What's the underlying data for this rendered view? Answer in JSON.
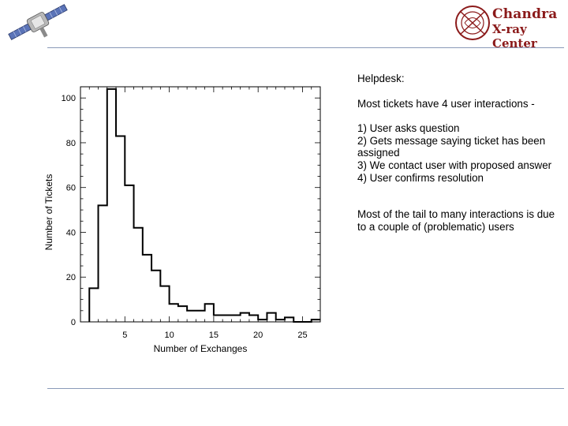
{
  "header": {
    "logo_line1": "Chandra",
    "logo_line2": "X-ray Center",
    "satellite_icon": "satellite-icon",
    "logo_icon": "chandra-logo-icon"
  },
  "notes": {
    "heading": "Helpdesk:",
    "intro": "Most tickets have 4 user interactions -",
    "steps": [
      "1)  User asks question",
      "2)  Gets message saying ticket has been assigned",
      "3)  We contact user with proposed answer",
      "4) User confirms resolution"
    ],
    "tail": "Most of the tail to many interactions is due to a couple of (problematic) users"
  },
  "chart_data": {
    "type": "histogram",
    "xlabel": "Number of Exchanges",
    "ylabel": "Number of Tickets",
    "xlim": [
      0,
      27
    ],
    "ylim": [
      0,
      105
    ],
    "xticks": [
      5,
      10,
      15,
      20,
      25
    ],
    "yticks": [
      0,
      20,
      40,
      60,
      80,
      100
    ],
    "ytick_labels": [
      "0",
      "20",
      "40",
      "60",
      "80",
      "100"
    ],
    "bins": [
      1,
      2,
      3,
      4,
      5,
      6,
      7,
      8,
      9,
      10,
      11,
      12,
      13,
      14,
      15,
      16,
      17,
      18,
      19,
      20,
      21,
      22,
      23,
      24,
      25,
      26
    ],
    "values": [
      15,
      52,
      104,
      83,
      61,
      42,
      30,
      23,
      16,
      8,
      7,
      5,
      5,
      8,
      3,
      3,
      3,
      4,
      3,
      1,
      4,
      1,
      2,
      0,
      0,
      1
    ],
    "color": "#000000"
  }
}
